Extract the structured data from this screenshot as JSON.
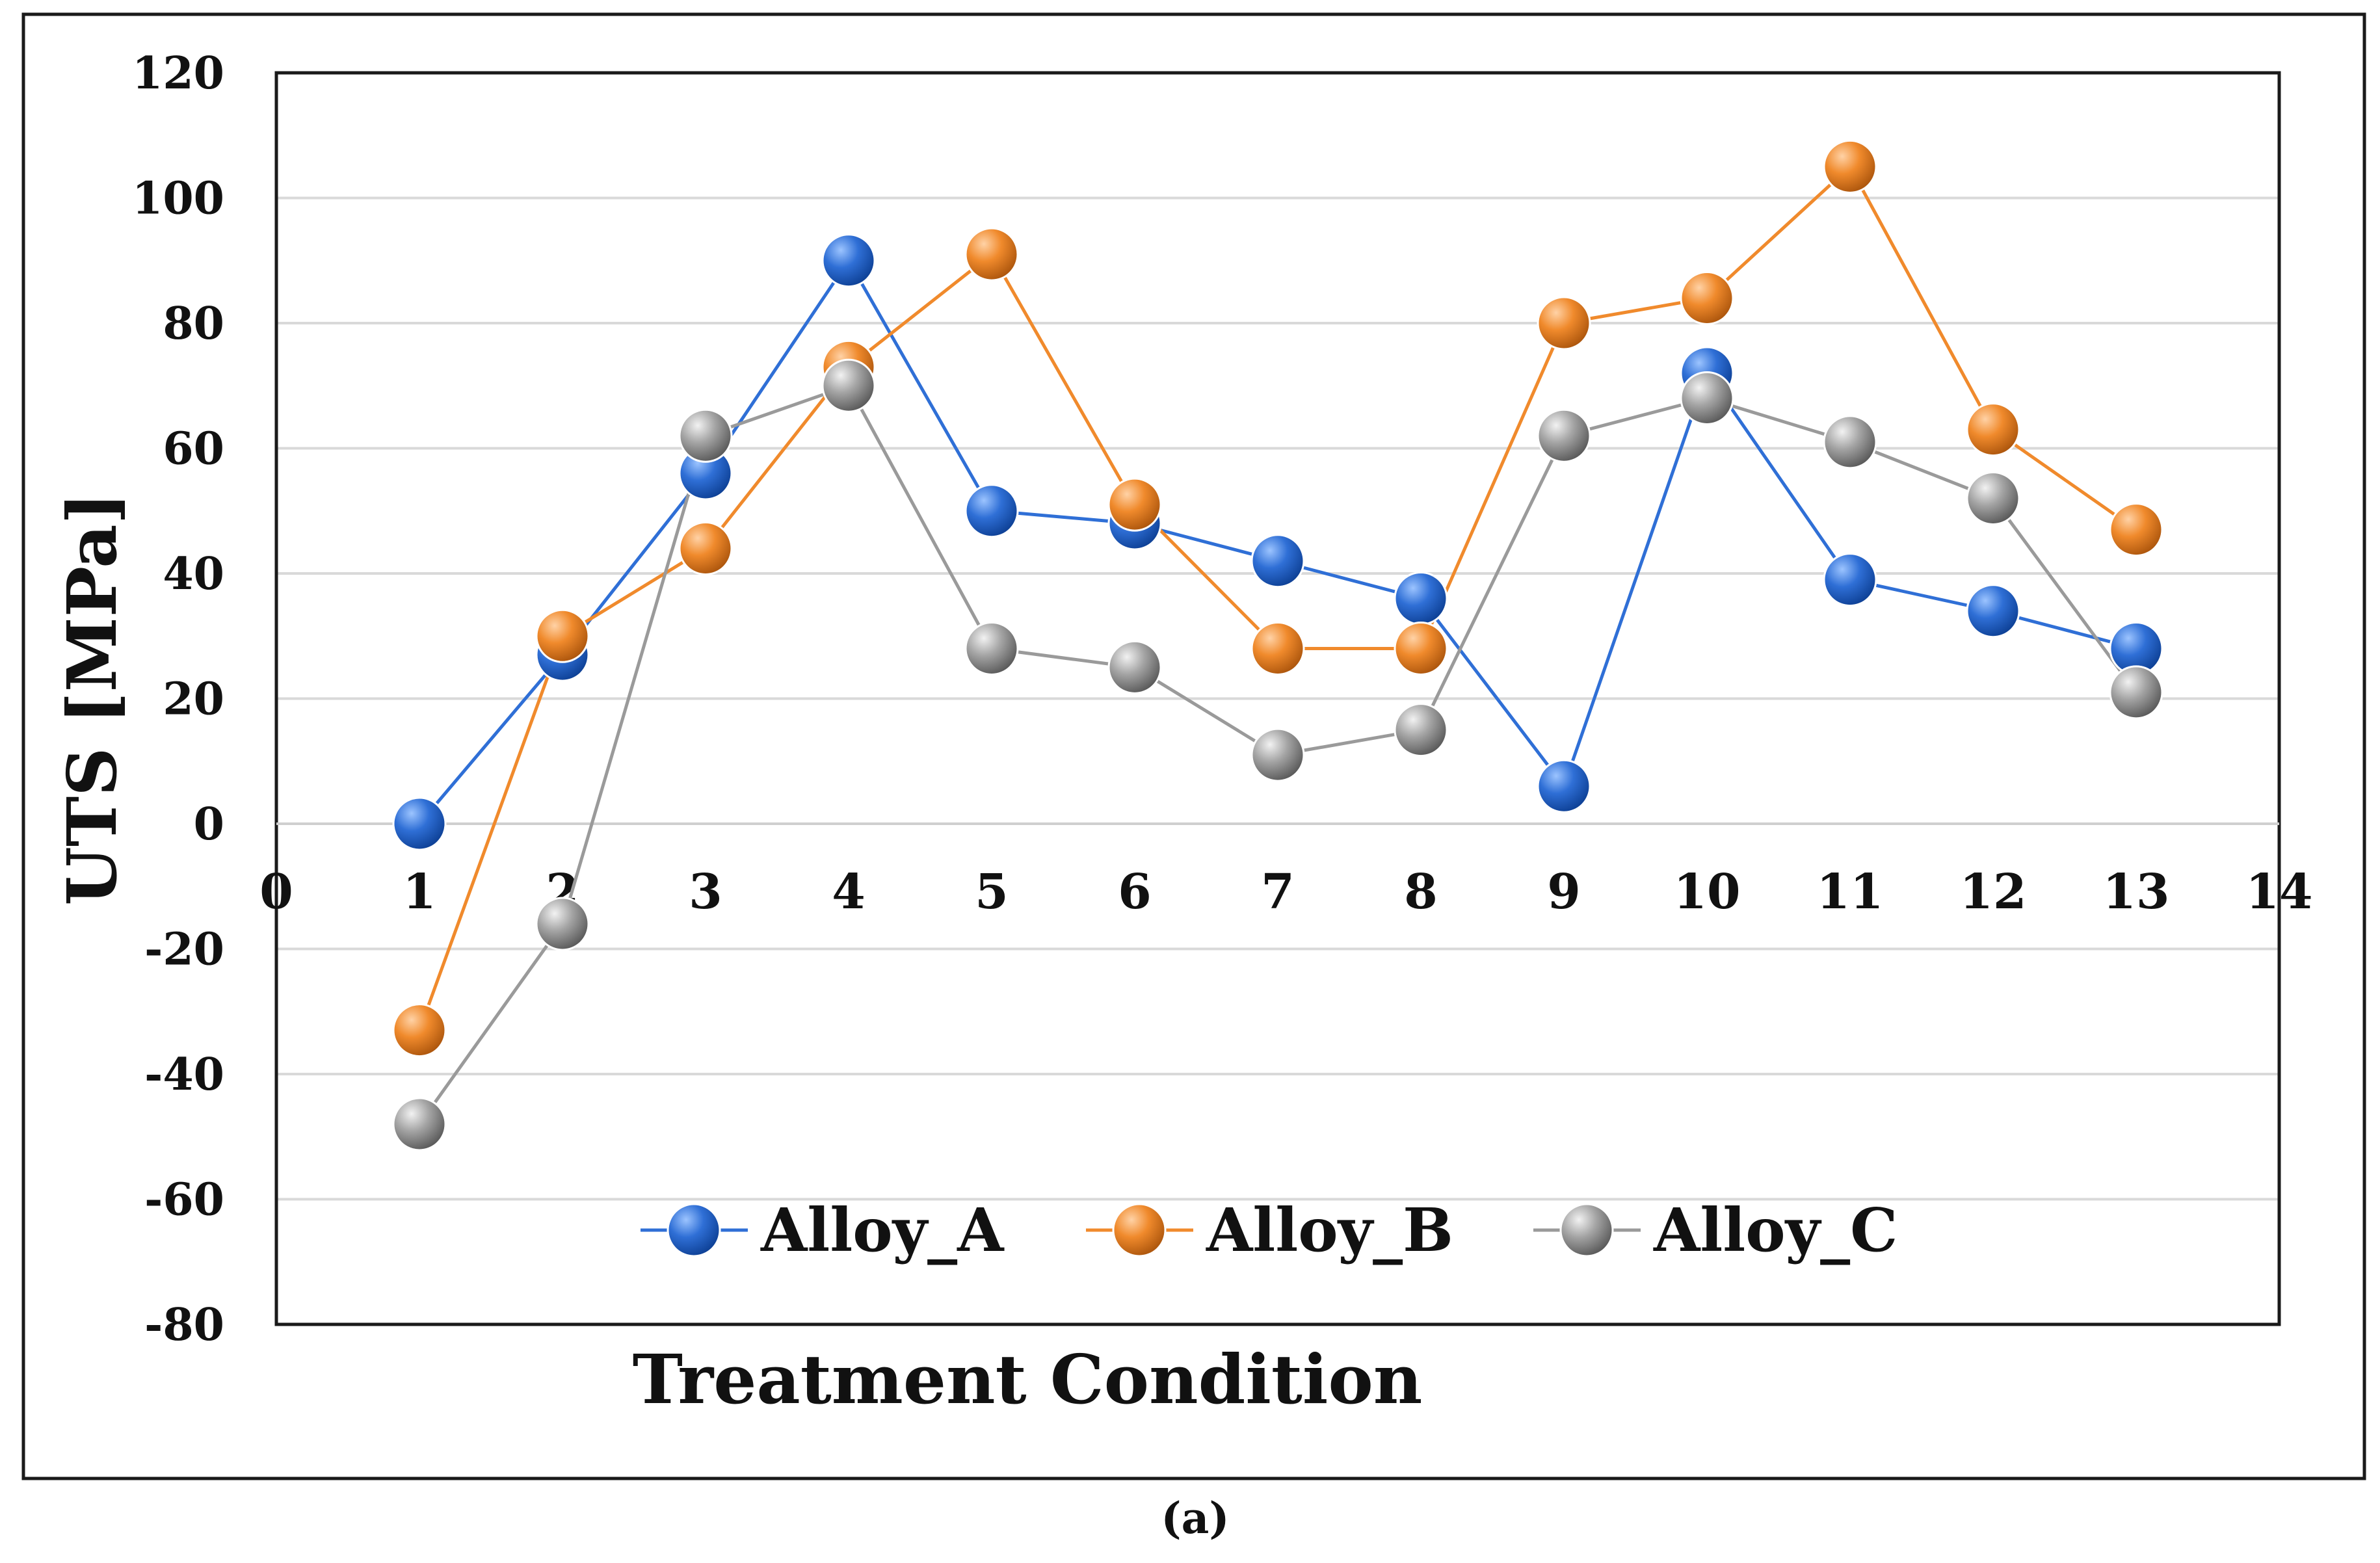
{
  "chart_data": {
    "type": "line",
    "title": "",
    "xlabel": "Treatment Condition",
    "ylabel": "UTS [MPa]",
    "caption": "(a)",
    "xlim": [
      0,
      14
    ],
    "ylim": [
      -80,
      120
    ],
    "x_ticks": [
      0,
      1,
      2,
      3,
      4,
      5,
      6,
      7,
      8,
      9,
      10,
      11,
      12,
      13,
      14
    ],
    "y_ticks": [
      -80,
      -60,
      -40,
      -20,
      0,
      20,
      40,
      60,
      80,
      100,
      120
    ],
    "grid": true,
    "legend_position": "bottom-center",
    "x": [
      1,
      2,
      3,
      4,
      5,
      6,
      7,
      8,
      9,
      10,
      11,
      12,
      13
    ],
    "series": [
      {
        "name": "Alloy_A",
        "color": "#2f6fd6",
        "values": [
          0,
          27,
          56,
          90,
          50,
          48,
          42,
          36,
          6,
          72,
          39,
          34,
          28
        ]
      },
      {
        "name": "Alloy_B",
        "color": "#f08a2c",
        "values": [
          -33,
          30,
          44,
          73,
          91,
          51,
          28,
          28,
          80,
          84,
          105,
          63,
          47
        ]
      },
      {
        "name": "Alloy_C",
        "color": "#9a9a9a",
        "values": [
          -48,
          -16,
          62,
          70,
          28,
          25,
          11,
          15,
          62,
          68,
          61,
          52,
          21
        ]
      }
    ]
  }
}
